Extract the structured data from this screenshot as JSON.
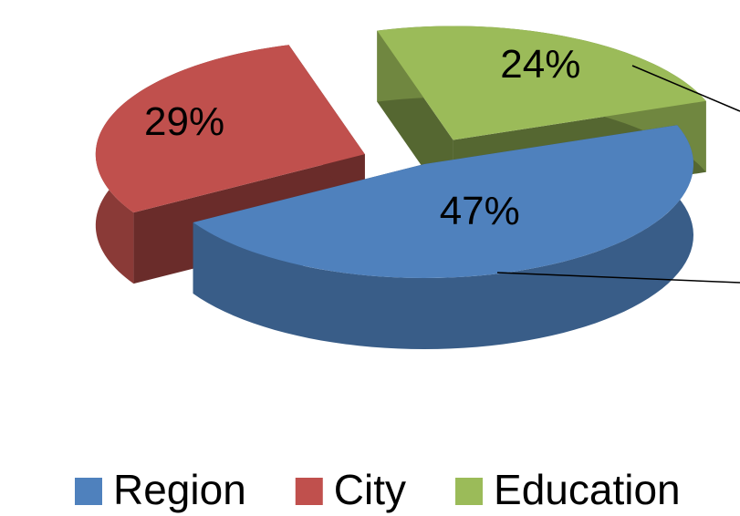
{
  "chart_data": {
    "type": "pie",
    "categories": [
      "Region",
      "City",
      "Education"
    ],
    "values": [
      47,
      29,
      24
    ],
    "value_labels": [
      "47%",
      "29%",
      "24%"
    ],
    "colors": [
      "#4f81bd",
      "#c0504d",
      "#9bbb59"
    ],
    "legend": "bottom"
  }
}
